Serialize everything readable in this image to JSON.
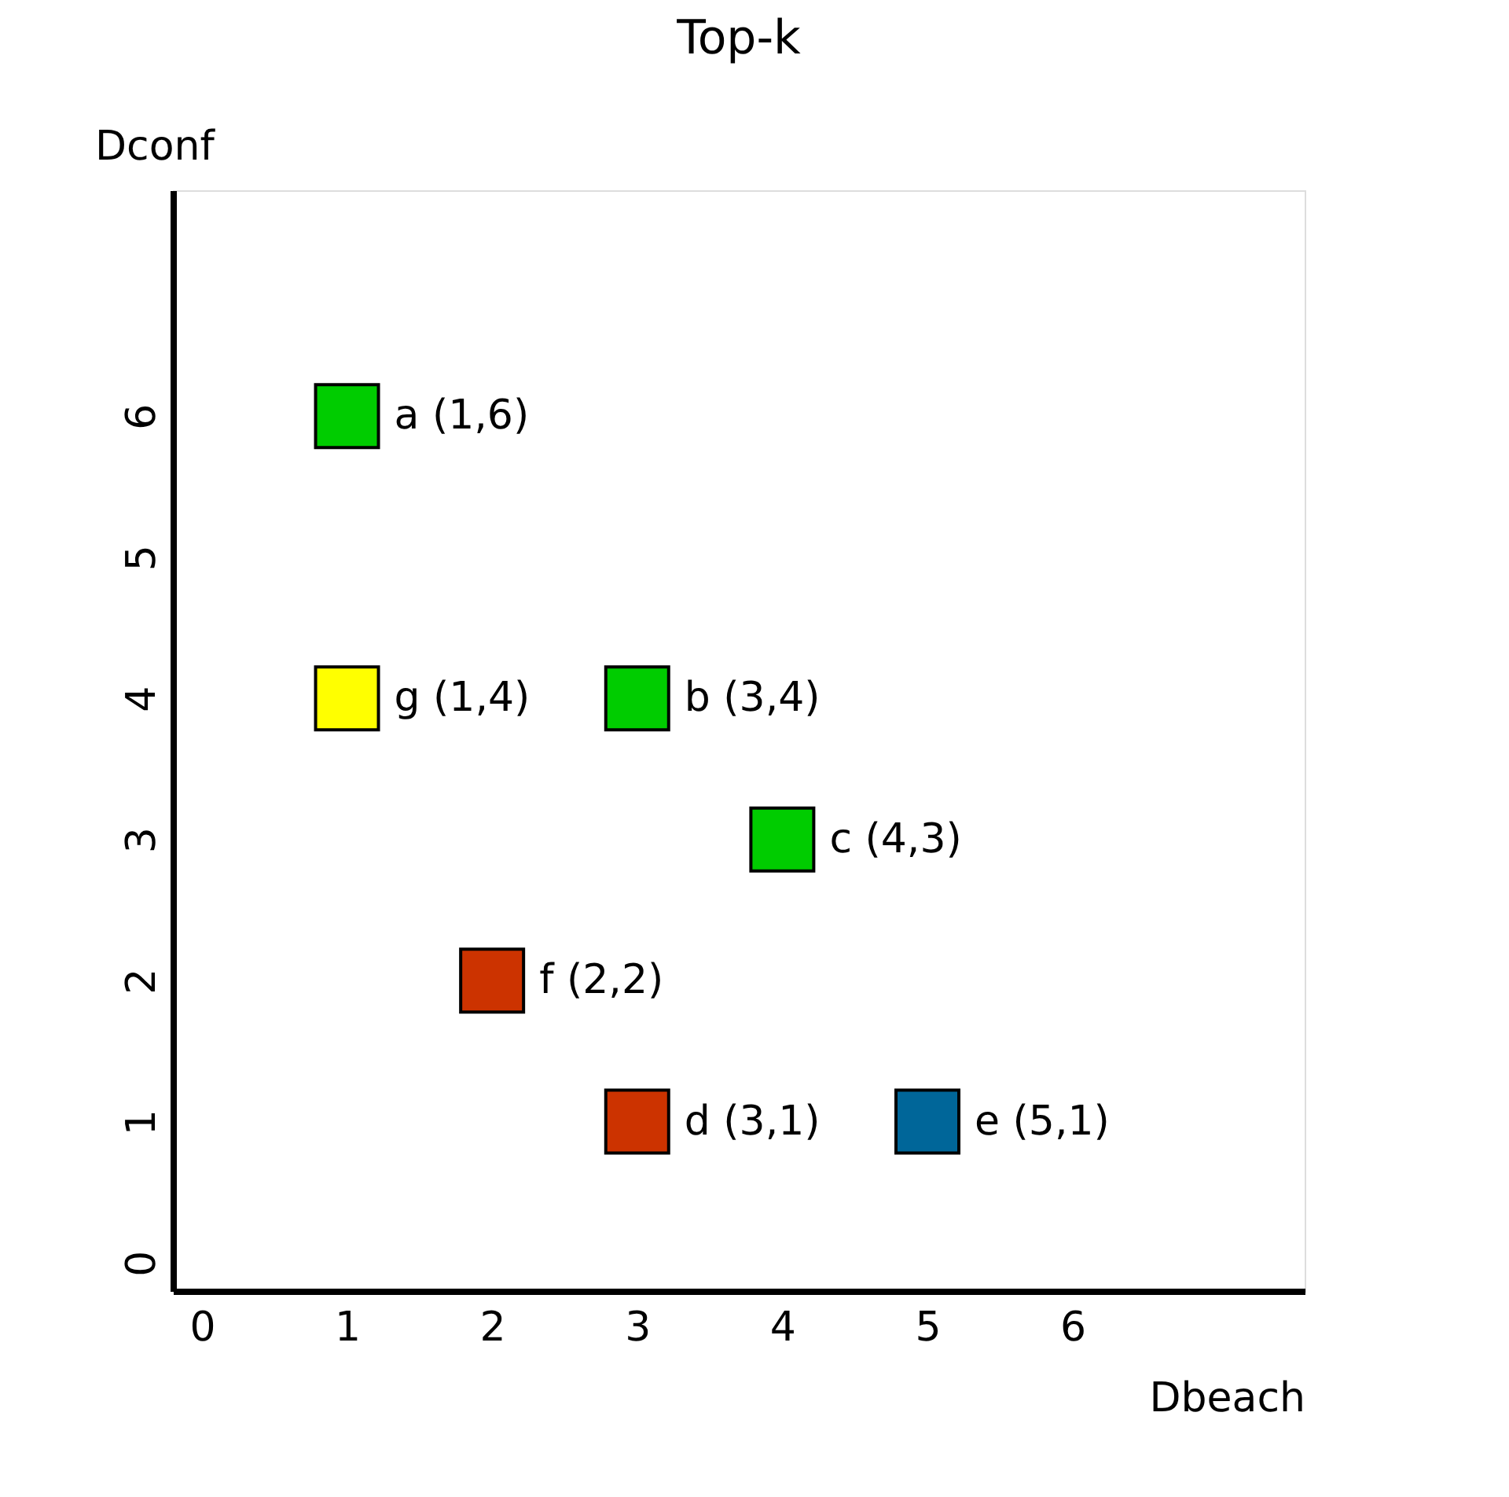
{
  "chart_data": {
    "type": "scatter",
    "title": "Top-k",
    "xlabel": "Dbeach",
    "ylabel": "Dconf",
    "x": [
      1,
      1,
      3,
      4,
      2,
      3,
      5
    ],
    "values": [
      6,
      4,
      4,
      3,
      2,
      1,
      1
    ],
    "colors": [
      "#00cc00",
      "#ffff00",
      "#00cc00",
      "#00cc00",
      "#cc3300",
      "#cc3300",
      "#006699"
    ],
    "annotations": [
      {
        "text": "a (1,6)",
        "x": 1,
        "y": 6
      },
      {
        "text": "g (1,4)",
        "x": 1,
        "y": 4
      },
      {
        "text": "b (3,4)",
        "x": 3,
        "y": 4
      },
      {
        "text": "c (4,3)",
        "x": 4,
        "y": 3
      },
      {
        "text": "f (2,2)",
        "x": 2,
        "y": 2
      },
      {
        "text": "d (3,1)",
        "x": 3,
        "y": 1
      },
      {
        "text": "e (5,1)",
        "x": 5,
        "y": 1
      }
    ],
    "marker": "square",
    "xlim": [
      -0.2,
      7.6
    ],
    "ylim": [
      -0.2,
      7.6
    ],
    "xticks": [
      0,
      1,
      2,
      3,
      4,
      5,
      6
    ],
    "yticks": [
      0,
      1,
      2,
      3,
      4,
      5,
      6
    ]
  }
}
